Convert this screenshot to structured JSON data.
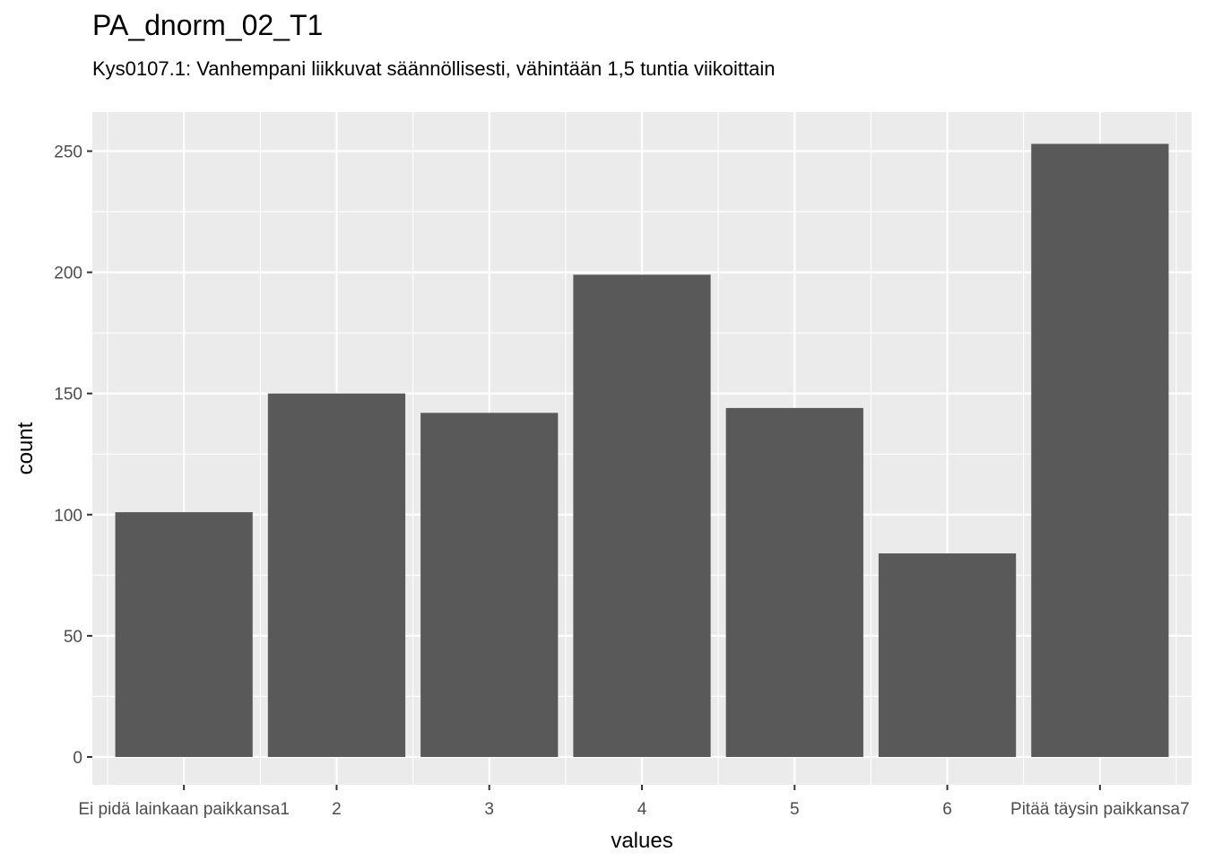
{
  "chart_data": {
    "type": "bar",
    "title": "PA_dnorm_02_T1",
    "subtitle": "Kys0107.1: Vanhempani liikkuvat säännöllisesti, vähintään 1,5 tuntia viikoittain",
    "xlabel": "values",
    "ylabel": "count",
    "categories": [
      "Ei pidä lainkaan paikkansa1",
      "2",
      "3",
      "4",
      "5",
      "6",
      "Pitää täysin paikkansa7"
    ],
    "values": [
      101,
      150,
      142,
      199,
      144,
      84,
      253
    ],
    "ylim": [
      0,
      265
    ],
    "yticks": [
      0,
      50,
      100,
      150,
      200,
      250
    ],
    "grid": true,
    "legend": "none",
    "colors": {
      "bar": "#595959",
      "panel": "#ebebeb",
      "grid": "#ffffff"
    }
  }
}
